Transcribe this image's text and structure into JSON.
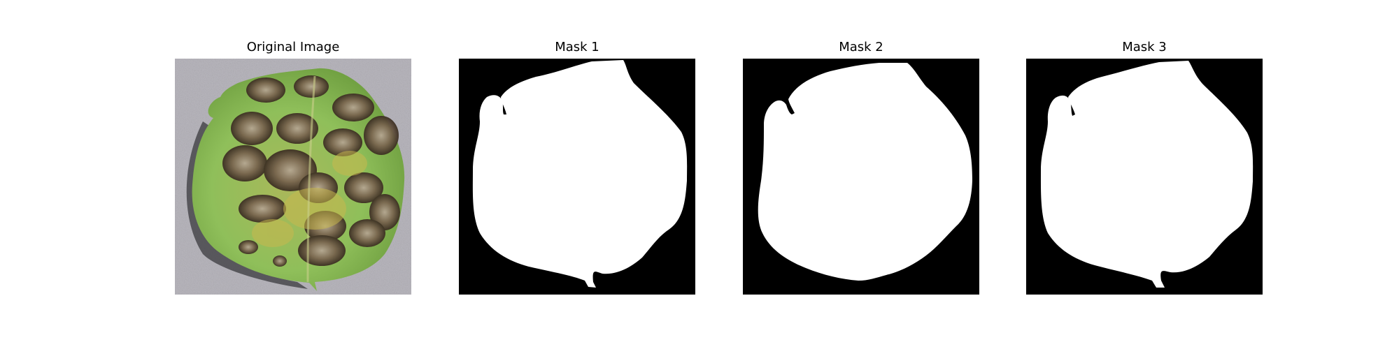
{
  "figure": {
    "panels": [
      {
        "title": "Original Image",
        "kind": "photo",
        "subject": "diseased-leaf"
      },
      {
        "title": "Mask 1",
        "kind": "mask"
      },
      {
        "title": "Mask 2",
        "kind": "mask"
      },
      {
        "title": "Mask 3",
        "kind": "mask"
      }
    ],
    "colors": {
      "mask_background": "#000000",
      "mask_foreground": "#ffffff",
      "photo_background": "#b9b7be",
      "leaf_green": "#8fbf5a",
      "leaf_dark_green": "#5f8f3a",
      "lesion_brown": "#6e5a45",
      "lesion_dark": "#3b2e22",
      "lesion_light": "#b7a894",
      "lesion_yellow": "#c8b84e"
    }
  }
}
